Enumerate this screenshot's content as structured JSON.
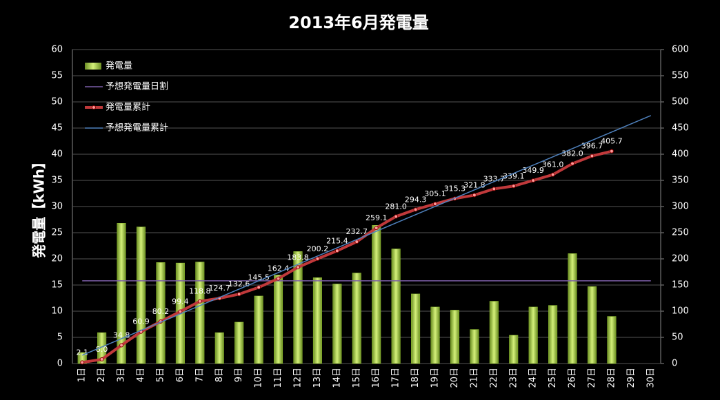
{
  "chart_data": {
    "type": "bar-line",
    "title": "2013年6月発電量",
    "y_label": "発電量【kWh】",
    "categories": [
      "1日",
      "2日",
      "3日",
      "4日",
      "5日",
      "6日",
      "7日",
      "8日",
      "9日",
      "10日",
      "11日",
      "12日",
      "13日",
      "14日",
      "15日",
      "16日",
      "17日",
      "18日",
      "19日",
      "20日",
      "21日",
      "22日",
      "23日",
      "24日",
      "25日",
      "26日",
      "27日",
      "28日",
      "29日",
      "30日"
    ],
    "ylim": [
      0,
      60
    ],
    "yticks": [
      0,
      5,
      10,
      15,
      20,
      25,
      30,
      35,
      40,
      45,
      50,
      55,
      60
    ],
    "y2lim": [
      0,
      600
    ],
    "y2ticks": [
      0,
      50,
      100,
      150,
      200,
      250,
      300,
      350,
      400,
      450,
      500,
      550,
      600
    ],
    "grid": true,
    "legend": "top-left",
    "series": [
      {
        "name": "発電量",
        "type": "bar",
        "color": "#9acd32",
        "values": [
          2.1,
          5.9,
          26.8,
          26.1,
          19.3,
          19.2,
          19.4,
          5.9,
          7.9,
          12.9,
          16.9,
          21.4,
          16.4,
          15.2,
          17.3,
          26.4,
          21.9,
          13.3,
          10.8,
          10.2,
          6.5,
          11.9,
          5.4,
          10.8,
          11.1,
          21.0,
          14.7,
          9.0,
          null,
          null
        ]
      },
      {
        "name": "予想発電量日割",
        "type": "line",
        "color": "#7b5ea7",
        "values": [
          15.8,
          15.8,
          15.8,
          15.8,
          15.8,
          15.8,
          15.8,
          15.8,
          15.8,
          15.8,
          15.8,
          15.8,
          15.8,
          15.8,
          15.8,
          15.8,
          15.8,
          15.8,
          15.8,
          15.8,
          15.8,
          15.8,
          15.8,
          15.8,
          15.8,
          15.8,
          15.8,
          15.8,
          15.8,
          15.8
        ]
      },
      {
        "name": "発電量累計",
        "type": "line",
        "color": "#c0393b",
        "axis": "y2",
        "markers": true,
        "values": [
          2.1,
          8.0,
          34.8,
          60.9,
          80.2,
          99.4,
          118.8,
          124.7,
          132.6,
          145.5,
          162.4,
          183.8,
          200.2,
          215.4,
          232.7,
          259.1,
          281.0,
          294.3,
          305.1,
          315.3,
          321.8,
          333.7,
          339.1,
          349.9,
          361.0,
          382.0,
          396.7,
          405.7,
          null,
          null
        ],
        "value_labels": [
          "2.1",
          "8.0",
          "34.8",
          "60.9",
          "80.2",
          "99.4",
          "118.8",
          "124.7",
          "132.6",
          "145.5",
          "162.4",
          "183.8",
          "200.2",
          "215.4",
          "232.7",
          "259.1",
          "281.0",
          "294.3",
          "305.1",
          "315.3",
          "321.8",
          "333.7",
          "339.1",
          "349.9",
          "361.0",
          "382.0",
          "396.7",
          "405.7",
          null,
          null
        ]
      },
      {
        "name": "予想発電量累計",
        "type": "line",
        "color": "#4f81bd",
        "axis": "y2",
        "values": [
          15.8,
          31.6,
          47.4,
          63.2,
          79,
          94.8,
          110.6,
          126.4,
          142.2,
          158,
          173.8,
          189.6,
          205.4,
          221.2,
          237,
          252.8,
          268.6,
          284.4,
          300.2,
          316,
          331.8,
          347.6,
          363.4,
          379.2,
          395,
          410.8,
          426.6,
          442.4,
          458.2,
          474
        ]
      }
    ]
  }
}
